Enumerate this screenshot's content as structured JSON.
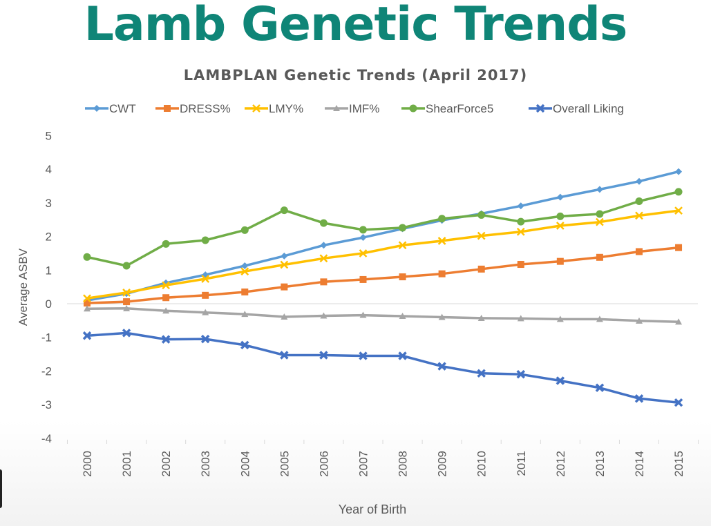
{
  "slide": {
    "title": "Lamb Genetic Trends"
  },
  "chart_data": {
    "type": "line",
    "title": "LAMBPLAN Genetic Trends (April 2017)",
    "xlabel": "Year of Birth",
    "ylabel": "Average ASBV",
    "ylim": [
      -4,
      5
    ],
    "yticks": [
      "-4",
      "-3",
      "-2",
      "-1",
      "0",
      "1",
      "2",
      "3",
      "4",
      "5"
    ],
    "grid": false,
    "legend_position": "top",
    "categories": [
      "2000",
      "2001",
      "2002",
      "2003",
      "2004",
      "2005",
      "2006",
      "2007",
      "2008",
      "2009",
      "2010",
      "2011",
      "2012",
      "2013",
      "2014",
      "2015"
    ],
    "series": [
      {
        "name": "CWT",
        "color": "#5b9bd5",
        "marker": "diamond",
        "values": [
          0.1,
          0.3,
          0.62,
          0.86,
          1.13,
          1.42,
          1.74,
          1.97,
          2.23,
          2.48,
          2.68,
          2.91,
          3.17,
          3.4,
          3.64,
          3.93
        ]
      },
      {
        "name": "DRESS%",
        "color": "#ed7d31",
        "marker": "square",
        "values": [
          0.02,
          0.06,
          0.18,
          0.25,
          0.35,
          0.5,
          0.65,
          0.72,
          0.8,
          0.89,
          1.03,
          1.17,
          1.26,
          1.38,
          1.55,
          1.67
        ]
      },
      {
        "name": "LMY%",
        "color": "#ffc000",
        "marker": "cross",
        "values": [
          0.16,
          0.33,
          0.55,
          0.74,
          0.96,
          1.16,
          1.35,
          1.5,
          1.74,
          1.87,
          2.02,
          2.14,
          2.32,
          2.43,
          2.62,
          2.77
        ]
      },
      {
        "name": "IMF%",
        "color": "#a5a5a5",
        "marker": "triangle",
        "values": [
          -0.15,
          -0.14,
          -0.21,
          -0.26,
          -0.31,
          -0.39,
          -0.36,
          -0.34,
          -0.37,
          -0.4,
          -0.43,
          -0.44,
          -0.46,
          -0.46,
          -0.51,
          -0.54
        ]
      },
      {
        "name": "ShearForce5",
        "color": "#70ad47",
        "marker": "circle",
        "values": [
          1.39,
          1.13,
          1.78,
          1.89,
          2.19,
          2.78,
          2.4,
          2.2,
          2.26,
          2.53,
          2.64,
          2.44,
          2.6,
          2.67,
          3.05,
          3.33
        ]
      },
      {
        "name": "Overall Liking",
        "color": "#4472c4",
        "marker": "x",
        "values": [
          -0.95,
          -0.87,
          -1.06,
          -1.05,
          -1.23,
          -1.53,
          -1.53,
          -1.55,
          -1.55,
          -1.86,
          -2.07,
          -2.1,
          -2.29,
          -2.5,
          -2.82,
          -2.94
        ]
      }
    ]
  }
}
